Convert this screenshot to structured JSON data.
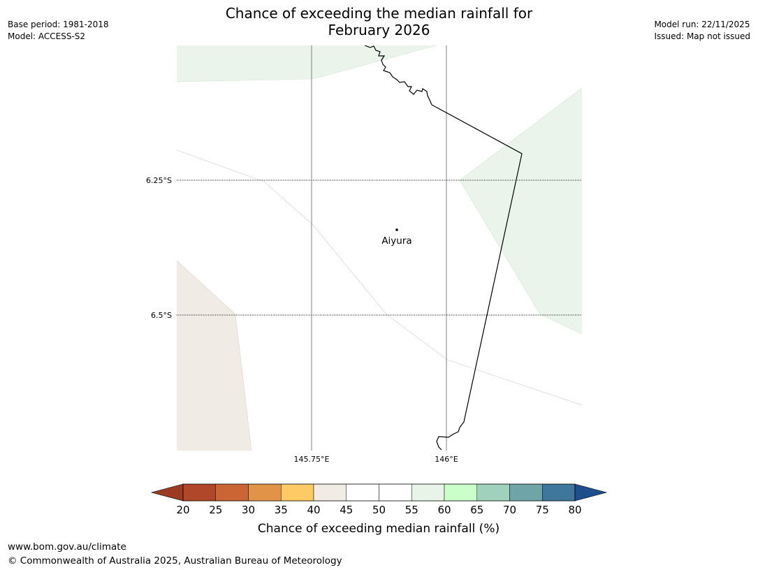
{
  "title": {
    "line1": "Chance of exceeding the median rainfall for",
    "line2": "February 2026"
  },
  "meta_left": {
    "base_period": "Base period: 1981-2018",
    "model": "Model: ACCESS-S2"
  },
  "meta_right": {
    "model_run": "Model run: 22/11/2025",
    "issued": "Issued: Map not issued"
  },
  "map": {
    "lat_labels": [
      "6.25°S",
      "6.5°S"
    ],
    "lon_labels": [
      "145.75°E",
      "146°E"
    ],
    "places": [
      {
        "name": "Aiyura"
      }
    ]
  },
  "colorbar": {
    "ticks": [
      "20",
      "25",
      "30",
      "35",
      "40",
      "45",
      "50",
      "55",
      "60",
      "65",
      "70",
      "75",
      "80"
    ],
    "colors": [
      "#b1472a",
      "#cc6534",
      "#e19447",
      "#fdca64",
      "#f0ebe3",
      "#ffffff",
      "#ffffff",
      "#e8f4e8",
      "#caffca",
      "#a0d1bc",
      "#70a5a8",
      "#3e779b"
    ],
    "under_color": "#9c3a22",
    "over_color": "#1f4e8c",
    "label": "Chance of exceeding median rainfall (%)"
  },
  "footer": {
    "url": "www.bom.gov.au/climate",
    "copyright": "© Commonwealth of Australia 2025, Australian Bureau of Meteorology"
  }
}
